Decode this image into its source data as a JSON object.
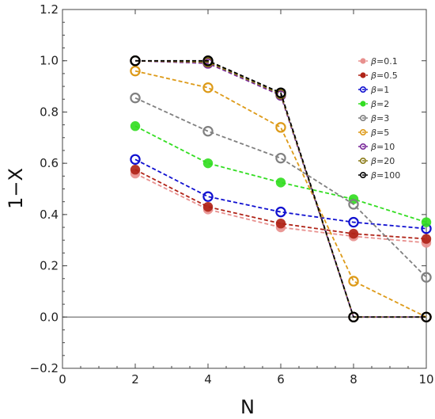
{
  "chart_data": {
    "type": "line",
    "xlabel": "N",
    "ylabel": "1−X",
    "xlim": [
      0,
      10
    ],
    "ylim": [
      -0.2,
      1.2
    ],
    "x_ticks": [
      "0",
      "2",
      "4",
      "6",
      "8",
      "10"
    ],
    "y_ticks": [
      "−0.2",
      "0.0",
      "0.2",
      "0.4",
      "0.6",
      "0.8",
      "1.0",
      "1.2"
    ],
    "legend_position": "top-right",
    "legend_prefix": "β",
    "x": [
      2,
      4,
      6,
      8,
      10
    ],
    "series": [
      {
        "name": "β=0.1",
        "label": "=0.1",
        "color": "#e8908e",
        "marker": "filled",
        "values": [
          0.56,
          0.42,
          0.35,
          0.315,
          0.29
        ]
      },
      {
        "name": "β=0.5",
        "label": "=0.5",
        "color": "#b02418",
        "marker": "filled",
        "values": [
          0.575,
          0.43,
          0.365,
          0.325,
          0.305
        ]
      },
      {
        "name": "β=1",
        "label": "=1",
        "color": "#1010d0",
        "marker": "open",
        "values": [
          0.615,
          0.47,
          0.41,
          0.37,
          0.345
        ]
      },
      {
        "name": "β=2",
        "label": "=2",
        "color": "#33dd22",
        "marker": "filled",
        "values": [
          0.745,
          0.6,
          0.525,
          0.46,
          0.37
        ]
      },
      {
        "name": "β=3",
        "label": "=3",
        "color": "#808080",
        "marker": "open",
        "values": [
          0.855,
          0.725,
          0.62,
          0.44,
          0.155
        ]
      },
      {
        "name": "β=5",
        "label": "=5",
        "color": "#dd9a18",
        "marker": "open",
        "values": [
          0.96,
          0.895,
          0.74,
          0.14,
          0.0
        ]
      },
      {
        "name": "β=10",
        "label": "=10",
        "color": "#7a2a9a",
        "marker": "open",
        "values": [
          1.0,
          0.99,
          0.865,
          0.0,
          0.0
        ]
      },
      {
        "name": "β=20",
        "label": "=20",
        "color": "#8a7a18",
        "marker": "open",
        "values": [
          1.0,
          0.995,
          0.87,
          0.0,
          0.0
        ]
      },
      {
        "name": "β=100",
        "label": "=100",
        "color": "#000000",
        "marker": "open",
        "values": [
          1.0,
          1.0,
          0.875,
          0.0,
          0.0
        ]
      }
    ]
  }
}
